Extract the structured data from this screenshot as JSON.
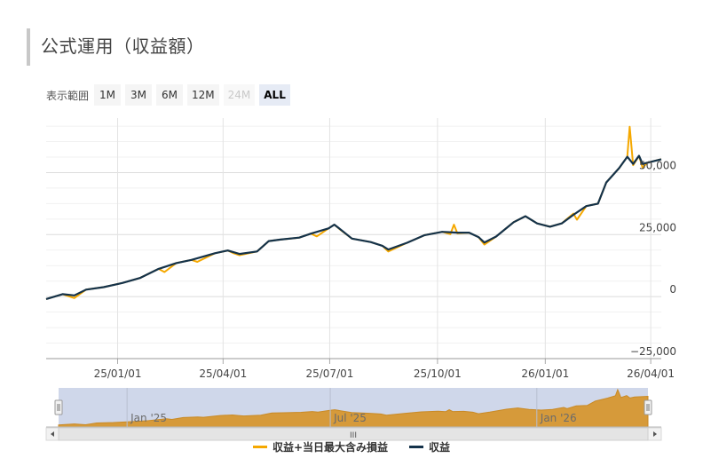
{
  "title": "公式運用（収益額）",
  "range_selector": {
    "label": "表示範囲",
    "buttons": [
      {
        "label": "1M",
        "state": "normal"
      },
      {
        "label": "3M",
        "state": "normal"
      },
      {
        "label": "6M",
        "state": "normal"
      },
      {
        "label": "12M",
        "state": "normal"
      },
      {
        "label": "24M",
        "state": "disabled"
      },
      {
        "label": "ALL",
        "state": "active"
      }
    ]
  },
  "colors": {
    "series_max": "#f5a800",
    "series_profit": "#14324a",
    "navigator_fill": "#d69a3a",
    "navigator_mask": "#cfd7ea",
    "grid": "#e8e8e8"
  },
  "chart_data": {
    "type": "line",
    "x_start": "2024-11-01",
    "x_end": "2026-04-10",
    "x_ticks": [
      "25/01/01",
      "25/04/01",
      "25/07/01",
      "25/10/01",
      "26/01/01",
      "26/04/01"
    ],
    "y_ticks": [
      "50,000",
      "25,000",
      "0",
      "−25,000"
    ],
    "ylim": [
      -25000,
      72000
    ],
    "grid": true,
    "legend_position": "bottom",
    "navigator": {
      "labels": [
        "Jan '25",
        "Jul '25",
        "Jan '26"
      ],
      "scrollbar_grip": "III"
    },
    "series": [
      {
        "name": "収益+当日最大含み損益",
        "color": "#f5a800",
        "points": [
          [
            "2024-11-01",
            -1000
          ],
          [
            "2024-11-15",
            1000
          ],
          [
            "2024-11-25",
            -600
          ],
          [
            "2024-12-05",
            2800
          ],
          [
            "2024-12-20",
            3800
          ],
          [
            "2025-01-05",
            5500
          ],
          [
            "2025-01-20",
            7500
          ],
          [
            "2025-02-05",
            11200
          ],
          [
            "2025-02-10",
            9900
          ],
          [
            "2025-02-20",
            13500
          ],
          [
            "2025-03-05",
            14800
          ],
          [
            "2025-03-10",
            14000
          ],
          [
            "2025-03-25",
            17500
          ],
          [
            "2025-04-05",
            18600
          ],
          [
            "2025-04-10",
            17500
          ],
          [
            "2025-04-15",
            16700
          ],
          [
            "2025-04-30",
            18200
          ],
          [
            "2025-05-10",
            22400
          ],
          [
            "2025-05-20",
            23000
          ],
          [
            "2025-06-05",
            23800
          ],
          [
            "2025-06-15",
            25400
          ],
          [
            "2025-06-20",
            24300
          ],
          [
            "2025-06-30",
            27500
          ],
          [
            "2025-07-05",
            29000
          ],
          [
            "2025-07-10",
            27000
          ],
          [
            "2025-07-20",
            23400
          ],
          [
            "2025-08-05",
            22000
          ],
          [
            "2025-08-15",
            20500
          ],
          [
            "2025-08-20",
            18200
          ],
          [
            "2025-09-05",
            21700
          ],
          [
            "2025-09-20",
            24800
          ],
          [
            "2025-10-05",
            26100
          ],
          [
            "2025-10-12",
            25200
          ],
          [
            "2025-10-15",
            29000
          ],
          [
            "2025-10-18",
            25500
          ],
          [
            "2025-10-28",
            25800
          ],
          [
            "2025-11-05",
            24000
          ],
          [
            "2025-11-10",
            21000
          ],
          [
            "2025-11-20",
            24200
          ],
          [
            "2025-12-05",
            30000
          ],
          [
            "2025-12-15",
            32400
          ],
          [
            "2025-12-25",
            29500
          ],
          [
            "2026-01-05",
            28200
          ],
          [
            "2026-01-15",
            29500
          ],
          [
            "2026-01-25",
            33500
          ],
          [
            "2026-01-28",
            31000
          ],
          [
            "2026-02-05",
            36500
          ],
          [
            "2026-02-15",
            37500
          ],
          [
            "2026-02-22",
            46000
          ],
          [
            "2026-03-05",
            51800
          ],
          [
            "2026-03-12",
            56400
          ],
          [
            "2026-03-14",
            68500
          ],
          [
            "2026-03-17",
            53000
          ],
          [
            "2026-03-22",
            56800
          ],
          [
            "2026-03-25",
            52000
          ],
          [
            "2026-03-29",
            54000
          ],
          [
            "2026-04-10",
            55400
          ]
        ]
      },
      {
        "name": "収益",
        "color": "#14324a",
        "points": [
          [
            "2024-11-01",
            -1000
          ],
          [
            "2024-11-15",
            1000
          ],
          [
            "2024-11-25",
            500
          ],
          [
            "2024-12-05",
            2800
          ],
          [
            "2024-12-20",
            3800
          ],
          [
            "2025-01-05",
            5500
          ],
          [
            "2025-01-20",
            7500
          ],
          [
            "2025-02-05",
            11200
          ],
          [
            "2025-02-20",
            13500
          ],
          [
            "2025-03-05",
            14800
          ],
          [
            "2025-03-25",
            17500
          ],
          [
            "2025-04-05",
            18600
          ],
          [
            "2025-04-15",
            17200
          ],
          [
            "2025-04-30",
            18200
          ],
          [
            "2025-05-10",
            22400
          ],
          [
            "2025-05-20",
            23000
          ],
          [
            "2025-06-05",
            23800
          ],
          [
            "2025-06-15",
            25400
          ],
          [
            "2025-06-30",
            27500
          ],
          [
            "2025-07-05",
            29000
          ],
          [
            "2025-07-10",
            27200
          ],
          [
            "2025-07-20",
            23400
          ],
          [
            "2025-08-05",
            22000
          ],
          [
            "2025-08-15",
            20500
          ],
          [
            "2025-08-20",
            19000
          ],
          [
            "2025-09-05",
            21700
          ],
          [
            "2025-09-20",
            24800
          ],
          [
            "2025-10-05",
            26100
          ],
          [
            "2025-10-18",
            25800
          ],
          [
            "2025-10-28",
            25800
          ],
          [
            "2025-11-05",
            24000
          ],
          [
            "2025-11-10",
            21800
          ],
          [
            "2025-11-20",
            24200
          ],
          [
            "2025-12-05",
            30000
          ],
          [
            "2025-12-15",
            32400
          ],
          [
            "2025-12-25",
            29500
          ],
          [
            "2026-01-05",
            28200
          ],
          [
            "2026-01-15",
            29500
          ],
          [
            "2026-01-25",
            33000
          ],
          [
            "2026-02-05",
            36500
          ],
          [
            "2026-02-15",
            37500
          ],
          [
            "2026-02-22",
            46000
          ],
          [
            "2026-03-05",
            51800
          ],
          [
            "2026-03-12",
            56400
          ],
          [
            "2026-03-17",
            53500
          ],
          [
            "2026-03-22",
            56800
          ],
          [
            "2026-03-25",
            53500
          ],
          [
            "2026-03-29",
            54000
          ],
          [
            "2026-04-10",
            55400
          ]
        ]
      }
    ]
  }
}
